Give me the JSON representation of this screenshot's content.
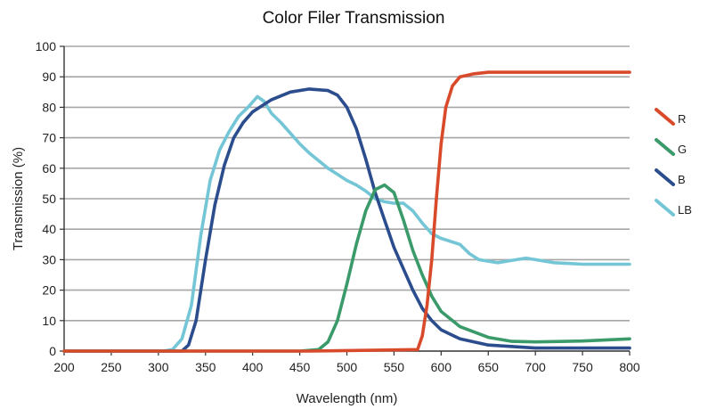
{
  "chart_data": {
    "type": "line",
    "title": "Color Filer Transmission",
    "xlabel": "Wavelength (nm)",
    "ylabel": "Transmission (%)",
    "xlim": [
      200,
      800
    ],
    "ylim": [
      0,
      100
    ],
    "xticks": [
      200,
      250,
      300,
      350,
      400,
      450,
      500,
      550,
      600,
      650,
      700,
      750,
      800
    ],
    "yticks": [
      0,
      10,
      20,
      30,
      40,
      50,
      60,
      70,
      80,
      90,
      100
    ],
    "grid": "horizontal",
    "legend_position": "right",
    "series": [
      {
        "name": "R",
        "color": "#d94a2b",
        "points": [
          [
            200,
            0
          ],
          [
            460,
            0
          ],
          [
            575,
            0.5
          ],
          [
            580,
            5
          ],
          [
            585,
            15
          ],
          [
            590,
            30
          ],
          [
            595,
            50
          ],
          [
            600,
            68
          ],
          [
            605,
            80
          ],
          [
            612,
            87
          ],
          [
            620,
            90
          ],
          [
            635,
            91
          ],
          [
            650,
            91.5
          ],
          [
            700,
            91.5
          ],
          [
            800,
            91.5
          ]
        ]
      },
      {
        "name": "G",
        "color": "#3a9a6a",
        "points": [
          [
            200,
            0
          ],
          [
            450,
            0
          ],
          [
            470,
            0.5
          ],
          [
            480,
            3
          ],
          [
            490,
            10
          ],
          [
            500,
            22
          ],
          [
            510,
            35
          ],
          [
            520,
            46
          ],
          [
            530,
            53
          ],
          [
            540,
            54.5
          ],
          [
            550,
            52
          ],
          [
            560,
            43
          ],
          [
            570,
            33
          ],
          [
            580,
            25
          ],
          [
            590,
            18
          ],
          [
            600,
            13
          ],
          [
            620,
            8
          ],
          [
            650,
            4.5
          ],
          [
            675,
            3.2
          ],
          [
            700,
            3
          ],
          [
            750,
            3.3
          ],
          [
            800,
            4
          ]
        ]
      },
      {
        "name": "B",
        "color": "#2b4d8e",
        "points": [
          [
            200,
            0
          ],
          [
            325,
            0
          ],
          [
            332,
            2
          ],
          [
            340,
            10
          ],
          [
            350,
            30
          ],
          [
            360,
            48
          ],
          [
            370,
            61
          ],
          [
            380,
            70
          ],
          [
            390,
            75
          ],
          [
            400,
            78.5
          ],
          [
            420,
            82.5
          ],
          [
            440,
            85
          ],
          [
            460,
            86
          ],
          [
            480,
            85.5
          ],
          [
            490,
            84
          ],
          [
            500,
            80
          ],
          [
            510,
            73
          ],
          [
            520,
            63
          ],
          [
            530,
            52
          ],
          [
            540,
            43
          ],
          [
            550,
            34
          ],
          [
            560,
            27
          ],
          [
            570,
            20
          ],
          [
            580,
            14
          ],
          [
            590,
            10
          ],
          [
            600,
            7
          ],
          [
            620,
            4
          ],
          [
            650,
            2
          ],
          [
            700,
            1
          ],
          [
            800,
            1
          ]
        ]
      },
      {
        "name": "LB",
        "color": "#74c6d6",
        "points": [
          [
            200,
            0
          ],
          [
            305,
            0
          ],
          [
            315,
            0.5
          ],
          [
            325,
            4
          ],
          [
            335,
            15
          ],
          [
            345,
            38
          ],
          [
            355,
            56
          ],
          [
            365,
            66
          ],
          [
            375,
            72
          ],
          [
            385,
            77
          ],
          [
            395,
            80
          ],
          [
            405,
            83.5
          ],
          [
            412,
            82
          ],
          [
            420,
            78
          ],
          [
            430,
            75
          ],
          [
            440,
            71.5
          ],
          [
            450,
            68
          ],
          [
            460,
            65
          ],
          [
            470,
            62.5
          ],
          [
            480,
            60
          ],
          [
            490,
            58
          ],
          [
            500,
            56
          ],
          [
            510,
            54.5
          ],
          [
            520,
            52.5
          ],
          [
            530,
            50
          ],
          [
            540,
            49
          ],
          [
            550,
            48.5
          ],
          [
            560,
            48.5
          ],
          [
            570,
            46
          ],
          [
            580,
            42
          ],
          [
            590,
            38.5
          ],
          [
            600,
            37
          ],
          [
            620,
            35
          ],
          [
            630,
            32
          ],
          [
            640,
            30
          ],
          [
            660,
            29
          ],
          [
            680,
            30
          ],
          [
            690,
            30.5
          ],
          [
            700,
            30
          ],
          [
            720,
            29
          ],
          [
            750,
            28.5
          ],
          [
            800,
            28.5
          ]
        ]
      }
    ]
  }
}
